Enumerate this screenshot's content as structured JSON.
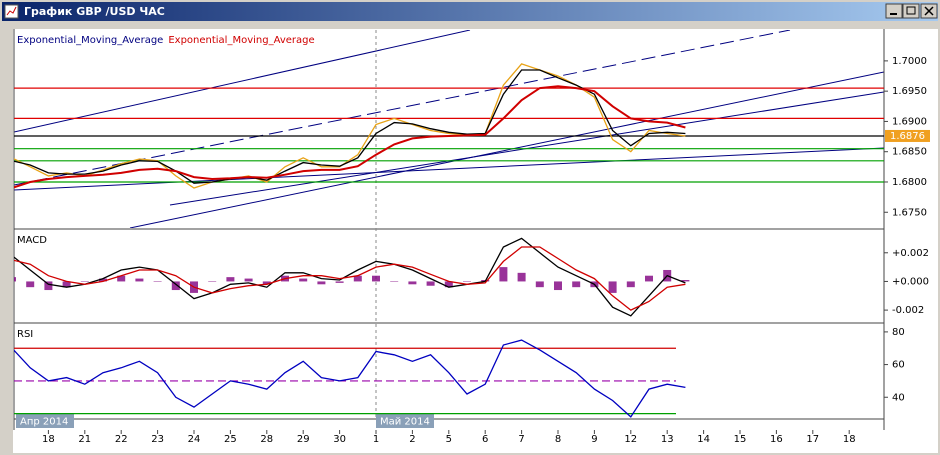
{
  "window": {
    "title": "График GBP /USD ЧАС"
  },
  "x_axis": {
    "categories": [
      null,
      null,
      "18",
      null,
      "21",
      null,
      "22",
      null,
      "23",
      null,
      "24",
      null,
      "25",
      null,
      "28",
      null,
      "29",
      null,
      "30",
      null,
      "1",
      null,
      "2",
      null,
      "5",
      null,
      "6",
      null,
      "7",
      null,
      "8",
      null,
      "9",
      null,
      "12",
      null,
      "13",
      null,
      "14",
      null,
      "15",
      null,
      "16",
      null,
      "17",
      null,
      "18",
      null
    ],
    "month_labels": [
      "Апр 2014",
      "Май 2014"
    ]
  },
  "chart_data": [
    {
      "type": "line",
      "ylim": [
        1.6724,
        1.7051
      ],
      "yticks": [
        {
          "value": 1.675,
          "label": "1.6750"
        },
        {
          "value": 1.68,
          "label": "1.6800"
        },
        {
          "value": 1.685,
          "label": "1.6850"
        },
        {
          "value": 1.69,
          "label": "1.6900"
        },
        {
          "value": 1.695,
          "label": "1.6950"
        },
        {
          "value": 1.7,
          "label": "1.7000"
        }
      ],
      "last_price": 1.6876,
      "levels": [
        {
          "value": 1.6955,
          "color": "#e00000"
        },
        {
          "value": 1.6905,
          "color": "#e00000"
        },
        {
          "value": 1.6876,
          "color": "#000000"
        },
        {
          "value": 1.6855,
          "color": "#00a000"
        },
        {
          "value": 1.6835,
          "color": "#00a000"
        },
        {
          "value": 1.68,
          "color": "#00a000"
        }
      ],
      "series": [
        {
          "color": "#e8a317",
          "values": [
            1.684,
            1.6825,
            1.681,
            1.6815,
            1.681,
            1.682,
            1.683,
            1.6838,
            1.6835,
            1.681,
            1.679,
            1.68,
            1.6805,
            1.681,
            1.68,
            1.6825,
            1.684,
            1.6825,
            1.6825,
            1.6845,
            1.6895,
            1.6905,
            1.6895,
            1.6885,
            1.688,
            1.6878,
            1.688,
            1.696,
            1.6995,
            1.6985,
            1.6975,
            1.696,
            1.694,
            1.687,
            1.685,
            1.6885,
            1.688,
            1.6876,
            null,
            null,
            null,
            null,
            null,
            null,
            null,
            null,
            null,
            null
          ]
        },
        {
          "name": "Exponential_Moving_Average",
          "color": "#000000",
          "values": [
            1.6835,
            1.6828,
            1.6815,
            1.6813,
            1.6813,
            1.6818,
            1.6828,
            1.6835,
            1.6834,
            1.6818,
            1.6798,
            1.68,
            1.6805,
            1.6808,
            1.6803,
            1.6818,
            1.6832,
            1.6828,
            1.6826,
            1.684,
            1.688,
            1.6898,
            1.6896,
            1.6888,
            1.6882,
            1.6879,
            1.688,
            1.6945,
            1.6985,
            1.6985,
            1.6972,
            1.696,
            1.6945,
            1.6885,
            1.686,
            1.688,
            1.6882,
            1.688,
            null,
            null,
            null,
            null,
            null,
            null,
            null,
            null,
            null,
            null
          ]
        },
        {
          "name": "Exponential_Moving_Average",
          "color": "#d00000",
          "values": [
            1.679,
            1.68,
            1.6805,
            1.6808,
            1.681,
            1.6812,
            1.6815,
            1.682,
            1.6822,
            1.6818,
            1.6808,
            1.6805,
            1.6806,
            1.6808,
            1.6807,
            1.6812,
            1.6818,
            1.682,
            1.682,
            1.6826,
            1.6845,
            1.6862,
            1.6872,
            1.6875,
            1.6876,
            1.6877,
            1.6878,
            1.6905,
            1.6935,
            1.6955,
            1.6958,
            1.6955,
            1.695,
            1.6925,
            1.6905,
            1.69,
            1.6898,
            1.689,
            null,
            null,
            null,
            null,
            null,
            null,
            null,
            null,
            null,
            null
          ]
        }
      ]
    },
    {
      "type": "line",
      "title": "MACD",
      "ylim": [
        -0.00283,
        0.00338
      ],
      "yticks": [
        {
          "value": -0.002,
          "label": "-0.002"
        },
        {
          "value": 0,
          "label": "+0.000"
        },
        {
          "value": 0.002,
          "label": "+0.002"
        }
      ],
      "series": [
        {
          "type": "bar",
          "color": "#800080",
          "values": [
            0.0003,
            -0.0004,
            -0.0006,
            -0.0004,
            0,
            0.0002,
            0.0004,
            0.0002,
            0,
            -0.0006,
            -0.0008,
            0,
            0.0003,
            0.0002,
            -0.0002,
            0.0004,
            0.0002,
            -0.0002,
            -0.0001,
            0.0004,
            0.0004,
            0,
            -0.0002,
            -0.0003,
            -0.0004,
            0,
            0.0001,
            0.001,
            0.0006,
            -0.0004,
            -0.0006,
            -0.0004,
            -0.0004,
            -0.0008,
            -0.0004,
            0.0004,
            0.0008,
            0.0001,
            null,
            null,
            null,
            null,
            null,
            null,
            null,
            null,
            null,
            null
          ]
        },
        {
          "type": "line",
          "color": "#000000",
          "values": [
            0.0018,
            0.0008,
            -0.0002,
            -0.0004,
            -0.0002,
            0.0002,
            0.0008,
            0.001,
            0.0008,
            -0.0002,
            -0.0012,
            -0.0008,
            -0.0002,
            -0.0001,
            -0.0004,
            0.0006,
            0.0006,
            0.0002,
            0.0001,
            0.0008,
            0.0014,
            0.0012,
            0.0008,
            0.0002,
            -0.0004,
            -0.0002,
            0,
            0.0024,
            0.003,
            0.002,
            0.001,
            0.0004,
            -0.0002,
            -0.0018,
            -0.0024,
            -0.001,
            0.0004,
            -0.0001,
            null,
            null,
            null,
            null,
            null,
            null,
            null,
            null,
            null,
            null
          ]
        },
        {
          "type": "line",
          "color": "#d00000",
          "values": [
            0.0015,
            0.0012,
            0.0004,
            0,
            -0.0002,
            0,
            0.0004,
            0.0008,
            0.0008,
            0.0004,
            -0.0004,
            -0.0008,
            -0.0005,
            -0.0003,
            -0.0002,
            0.0002,
            0.0004,
            0.0004,
            0.0002,
            0.0004,
            0.001,
            0.0012,
            0.001,
            0.0005,
            0,
            -0.0002,
            -0.0001,
            0.0014,
            0.0024,
            0.0024,
            0.0016,
            0.0008,
            0.0002,
            -0.001,
            -0.002,
            -0.0014,
            -0.0004,
            -0.0002,
            null,
            null,
            null,
            null,
            null,
            null,
            null,
            null,
            null,
            null
          ]
        }
      ]
    },
    {
      "type": "line",
      "title": "RSI",
      "ylim": [
        27.3,
        83
      ],
      "yticks": [
        40,
        60,
        80
      ],
      "levels": [
        {
          "value": 70,
          "color": "#d00000"
        },
        {
          "value": 50,
          "color": "#9900aa",
          "dashed": true
        },
        {
          "value": 30,
          "color": "#00a000"
        }
      ],
      "series": [
        {
          "color": "#0000c0",
          "values": [
            70,
            58,
            50,
            52,
            48,
            55,
            58,
            62,
            55,
            40,
            34,
            42,
            50,
            48,
            45,
            55,
            62,
            52,
            50,
            52,
            68,
            66,
            62,
            66,
            55,
            42,
            48,
            72,
            75,
            69,
            62,
            55,
            45,
            38,
            28,
            45,
            48,
            46,
            null,
            null,
            null,
            null,
            null,
            null,
            null,
            null,
            null,
            null
          ]
        }
      ]
    }
  ]
}
